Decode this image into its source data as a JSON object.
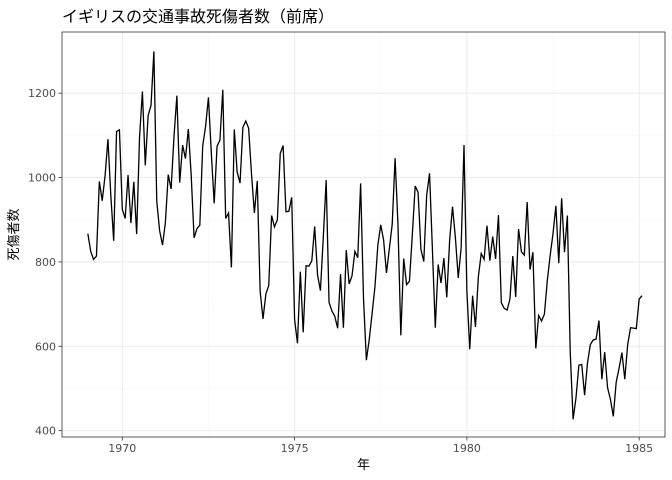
{
  "chart_data": {
    "type": "line",
    "title": "イギリスの交通事故死傷者数（前席）",
    "xlabel": "年",
    "ylabel": "死傷者数",
    "xlim": [
      1968.25,
      1985.75
    ],
    "ylim": [
      385,
      1345
    ],
    "xticks": [
      1970,
      1975,
      1980,
      1985
    ],
    "yticks": [
      400,
      600,
      800,
      1000,
      1200
    ],
    "grid": true,
    "legend": "none",
    "colors": {
      "line": "#000000",
      "panel_border": "#333333",
      "grid_major": "#ebebeb",
      "grid_minor": "#f5f5f5",
      "tick_label": "#4d4d4d"
    },
    "series": [
      {
        "start_year": 1969,
        "frequency": 12,
        "values": [
          867,
          825,
          806,
          814,
          991,
          945,
          1004,
          1091,
          958,
          850,
          1109,
          1113,
          925,
          903,
          1006,
          892,
          990,
          866,
          1095,
          1204,
          1029,
          1147,
          1171,
          1299,
          944,
          874,
          840,
          893,
          1007,
          973,
          1097,
          1194,
          988,
          1077,
          1045,
          1115,
          1005,
          857,
          879,
          887,
          1075,
          1121,
          1190,
          1058,
          939,
          1074,
          1089,
          1208,
          903,
          916,
          787,
          1114,
          1013,
          987,
          1119,
          1134,
          1117,
          1008,
          916,
          992,
          731,
          665,
          724,
          744,
          910,
          883,
          900,
          1057,
          1076,
          919,
          920,
          953,
          664,
          607,
          777,
          633,
          791,
          790,
          803,
          884,
          769,
          732,
          859,
          994,
          704,
          684,
          671,
          643,
          771,
          644,
          828,
          748,
          767,
          825,
          810,
          986,
          714,
          567,
          616,
          678,
          742,
          840,
          888,
          852,
          774,
          831,
          889,
          1046,
          889,
          626,
          808,
          746,
          754,
          864,
          980,
          965,
          830,
          801,
          958,
          1010,
          830,
          644,
          794,
          750,
          809,
          716,
          851,
          931,
          858,
          762,
          833,
          1077,
          731,
          593,
          720,
          646,
          765,
          820,
          806,
          886,
          803,
          860,
          807,
          911,
          703,
          690,
          686,
          712,
          814,
          717,
          878,
          824,
          816,
          942,
          782,
          823,
          595,
          673,
          660,
          676,
          755,
          815,
          867,
          933,
          797,
          951,
          823,
          910,
          585,
          427,
          478,
          555,
          557,
          484,
          560,
          604,
          615,
          617,
          661,
          522,
          586,
          502,
          474,
          434,
          515,
          548,
          585,
          522,
          604,
          644,
          643,
          642,
          712,
          720
        ]
      }
    ]
  }
}
